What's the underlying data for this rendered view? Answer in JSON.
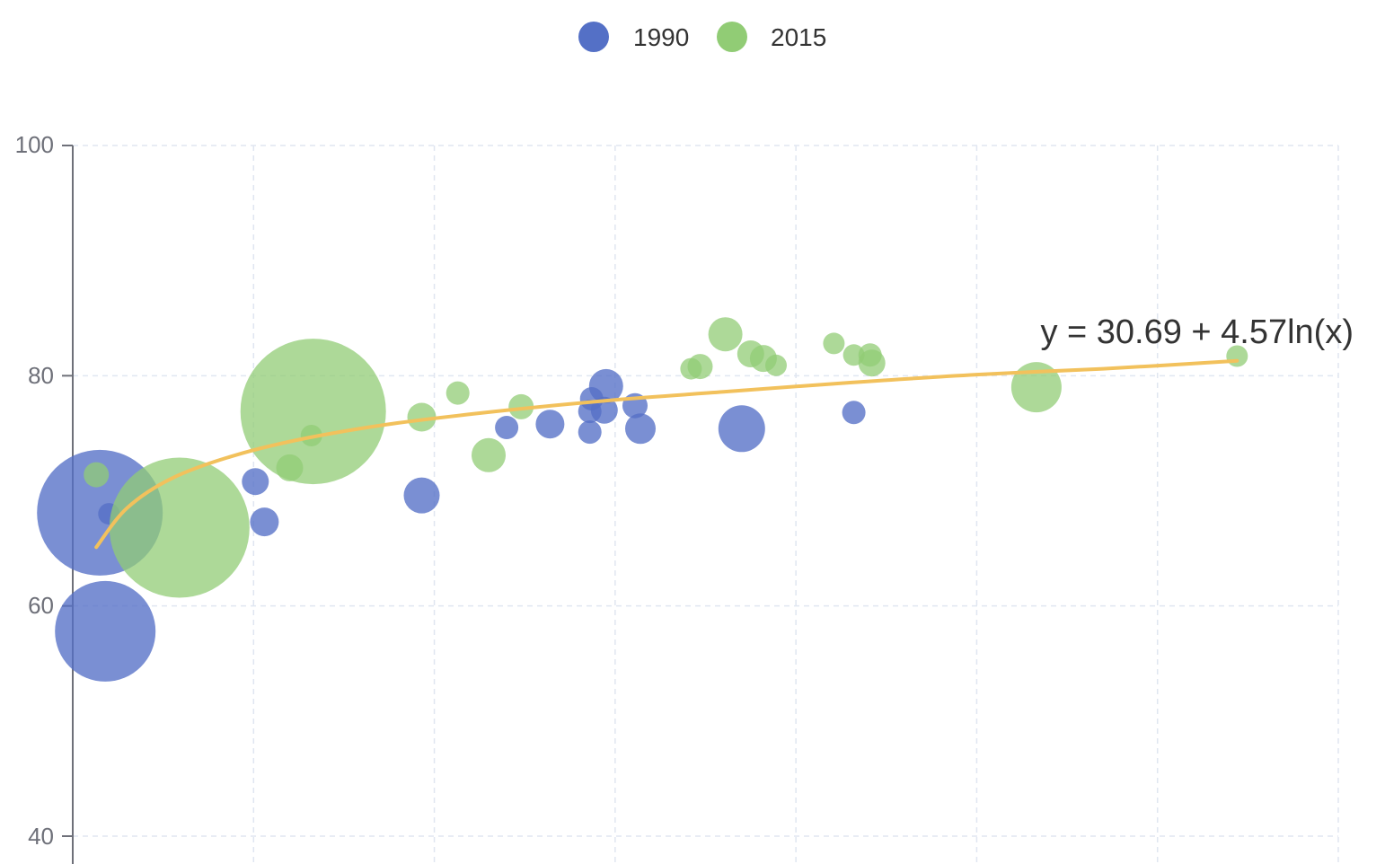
{
  "chart_data": {
    "type": "scatter",
    "subtype": "bubble-with-regression",
    "title": "",
    "xlabel": "",
    "ylabel": "",
    "x_axis": {
      "domain_index": [
        0,
        7
      ],
      "tick_labels": []
    },
    "ylim": [
      40,
      100
    ],
    "y_ticks": [
      "40",
      "60",
      "80",
      "100"
    ],
    "grid": true,
    "legend_position": "top-center",
    "colors": {
      "1990": "#5470c6",
      "2015": "#91cc75",
      "trendline": "#f2c15c",
      "grid": "#e0e6f1",
      "axis": "#6e7079"
    },
    "series": [
      {
        "name": "1990",
        "points": [
          {
            "x": 0.15,
            "y": 68.1,
            "r": 70
          },
          {
            "x": 0.18,
            "y": 57.8,
            "r": 56
          },
          {
            "x": 0.2,
            "y": 68.0,
            "r": 12
          },
          {
            "x": 1.01,
            "y": 70.8,
            "r": 15
          },
          {
            "x": 1.06,
            "y": 67.3,
            "r": 16
          },
          {
            "x": 1.93,
            "y": 69.6,
            "r": 20
          },
          {
            "x": 2.4,
            "y": 75.5,
            "r": 13
          },
          {
            "x": 2.64,
            "y": 75.8,
            "r": 16
          },
          {
            "x": 2.86,
            "y": 75.1,
            "r": 13
          },
          {
            "x": 2.86,
            "y": 76.9,
            "r": 13
          },
          {
            "x": 2.87,
            "y": 78.0,
            "r": 13
          },
          {
            "x": 2.94,
            "y": 77.0,
            "r": 15
          },
          {
            "x": 2.95,
            "y": 79.1,
            "r": 19
          },
          {
            "x": 3.11,
            "y": 77.4,
            "r": 14
          },
          {
            "x": 3.14,
            "y": 75.4,
            "r": 17
          },
          {
            "x": 3.7,
            "y": 75.4,
            "r": 26
          },
          {
            "x": 4.32,
            "y": 76.8,
            "r": 13
          }
        ]
      },
      {
        "name": "2015",
        "points": [
          {
            "x": 0.13,
            "y": 71.4,
            "r": 14
          },
          {
            "x": 0.59,
            "y": 66.8,
            "r": 78
          },
          {
            "x": 1.2,
            "y": 72.0,
            "r": 15
          },
          {
            "x": 1.32,
            "y": 74.8,
            "r": 12
          },
          {
            "x": 1.33,
            "y": 76.9,
            "r": 81
          },
          {
            "x": 1.93,
            "y": 76.4,
            "r": 16
          },
          {
            "x": 2.13,
            "y": 78.5,
            "r": 13
          },
          {
            "x": 2.3,
            "y": 73.1,
            "r": 19
          },
          {
            "x": 2.48,
            "y": 77.3,
            "r": 14
          },
          {
            "x": 3.42,
            "y": 80.6,
            "r": 12
          },
          {
            "x": 3.47,
            "y": 80.8,
            "r": 14
          },
          {
            "x": 3.61,
            "y": 83.6,
            "r": 19
          },
          {
            "x": 3.75,
            "y": 81.9,
            "r": 15
          },
          {
            "x": 3.82,
            "y": 81.5,
            "r": 15
          },
          {
            "x": 3.89,
            "y": 80.9,
            "r": 12
          },
          {
            "x": 4.21,
            "y": 82.8,
            "r": 12
          },
          {
            "x": 4.32,
            "y": 81.8,
            "r": 12
          },
          {
            "x": 4.41,
            "y": 81.8,
            "r": 13
          },
          {
            "x": 4.42,
            "y": 81.1,
            "r": 15
          },
          {
            "x": 5.33,
            "y": 79.0,
            "r": 28
          },
          {
            "x": 6.44,
            "y": 81.7,
            "r": 12
          }
        ]
      }
    ],
    "trendline": {
      "type": "logarithmic",
      "label": "y = 30.69 + 4.57ln(x)",
      "points": [
        {
          "x": 0.13,
          "y": 65.1
        },
        {
          "x": 0.3,
          "y": 68.5
        },
        {
          "x": 0.55,
          "y": 71.1
        },
        {
          "x": 0.9,
          "y": 73.1
        },
        {
          "x": 1.3,
          "y": 74.6
        },
        {
          "x": 1.8,
          "y": 75.9
        },
        {
          "x": 2.4,
          "y": 77.0
        },
        {
          "x": 3.0,
          "y": 77.9
        },
        {
          "x": 3.6,
          "y": 78.6
        },
        {
          "x": 4.3,
          "y": 79.4
        },
        {
          "x": 5.0,
          "y": 80.1
        },
        {
          "x": 5.7,
          "y": 80.6
        },
        {
          "x": 6.44,
          "y": 81.3
        }
      ]
    }
  }
}
